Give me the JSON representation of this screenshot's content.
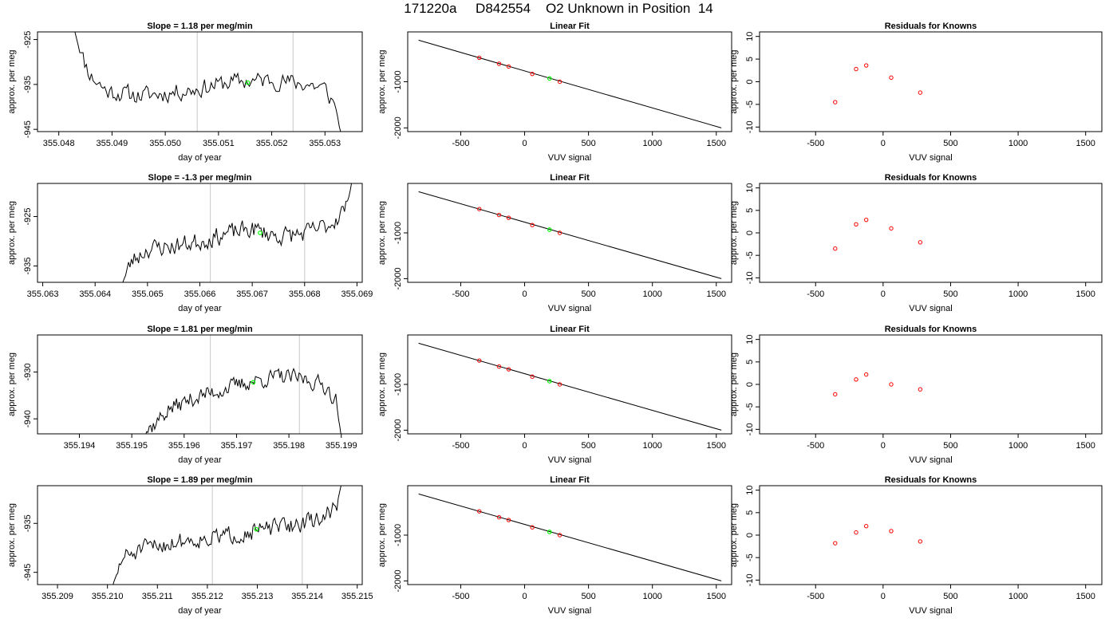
{
  "page_title": "171220a     D842554    O2 Unknown in Position  14",
  "colors": {
    "trace": "#000000",
    "knowns": "#ff0000",
    "unknown": "#00ff00",
    "guide_lines": "#c8c8c8",
    "fit_line": "#000000"
  },
  "chart_data": [
    {
      "type": "line",
      "title": "Slope =  1.18  per meg/min",
      "xlabel": "day of year",
      "ylabel": "approx. per meg",
      "xlim": [
        355.0476,
        355.0537
      ],
      "ylim": [
        -945.5,
        -923.3
      ],
      "xticks": [
        {
          "v": 355.048,
          "label": "355.048"
        },
        {
          "v": 355.049,
          "label": "355.049"
        },
        {
          "v": 355.05,
          "label": "355.050"
        },
        {
          "v": 355.051,
          "label": "355.051"
        },
        {
          "v": 355.052,
          "label": "355.052"
        },
        {
          "v": 355.053,
          "label": "355.053"
        }
      ],
      "yticks": [
        {
          "v": -945,
          "label": "-945"
        },
        {
          "v": -935,
          "label": "-935"
        },
        {
          "v": -925,
          "label": "-925"
        }
      ],
      "vlines": [
        355.0506,
        355.0524
      ],
      "trace": {
        "x0": 355.0483,
        "x1": 355.0533,
        "n": 160,
        "seed": 11,
        "noise": 1.8,
        "points": [
          [
            355.0483,
            -923.0
          ],
          [
            355.0484,
            -928
          ],
          [
            355.0486,
            -933
          ],
          [
            355.0489,
            -936.5
          ],
          [
            355.0495,
            -937.5
          ],
          [
            355.05,
            -937
          ],
          [
            355.0506,
            -936
          ],
          [
            355.0512,
            -934.5
          ],
          [
            355.052,
            -934
          ],
          [
            355.0527,
            -935
          ],
          [
            355.053,
            -936
          ],
          [
            355.0532,
            -940
          ],
          [
            355.0533,
            -946
          ]
        ]
      },
      "marker": {
        "x": 355.05155,
        "y": -934.6
      }
    },
    {
      "type": "line",
      "title": "Slope =  -1.3  per meg/min",
      "xlabel": "day of year",
      "ylabel": "approx. per meg",
      "xlim": [
        355.0629,
        355.0691
      ],
      "ylim": [
        -938.3,
        -918.3
      ],
      "xticks": [
        {
          "v": 355.063,
          "label": "355.063"
        },
        {
          "v": 355.064,
          "label": "355.064"
        },
        {
          "v": 355.065,
          "label": "355.065"
        },
        {
          "v": 355.066,
          "label": "355.066"
        },
        {
          "v": 355.067,
          "label": "355.067"
        },
        {
          "v": 355.068,
          "label": "355.068"
        },
        {
          "v": 355.069,
          "label": "355.069"
        }
      ],
      "yticks": [
        {
          "v": -935,
          "label": "-935"
        },
        {
          "v": -925,
          "label": "-925"
        }
      ],
      "vlines": [
        355.0662,
        355.068
      ],
      "trace": {
        "x0": 355.0645,
        "x1": 355.0689,
        "n": 160,
        "seed": 23,
        "noise": 1.7,
        "points": [
          [
            355.0645,
            -939
          ],
          [
            355.0647,
            -934
          ],
          [
            355.065,
            -931.5
          ],
          [
            355.0655,
            -931
          ],
          [
            355.066,
            -930
          ],
          [
            355.0665,
            -928.5
          ],
          [
            355.067,
            -927.5
          ],
          [
            355.0675,
            -929
          ],
          [
            355.068,
            -928.5
          ],
          [
            355.0685,
            -926.5
          ],
          [
            355.0688,
            -923
          ],
          [
            355.0689,
            -918
          ]
        ]
      },
      "marker": {
        "x": 355.06715,
        "y": -928.3
      }
    },
    {
      "type": "line",
      "title": "Slope =  1.81  per meg/min",
      "xlabel": "day of year",
      "ylabel": "approx. per meg",
      "xlim": [
        355.1932,
        355.1994
      ],
      "ylim": [
        -943.2,
        -922.1
      ],
      "xticks": [
        {
          "v": 355.194,
          "label": "355.194"
        },
        {
          "v": 355.195,
          "label": "355.195"
        },
        {
          "v": 355.196,
          "label": "355.196"
        },
        {
          "v": 355.197,
          "label": "355.197"
        },
        {
          "v": 355.198,
          "label": "355.198"
        },
        {
          "v": 355.199,
          "label": "355.199"
        }
      ],
      "yticks": [
        {
          "v": -940,
          "label": "-940"
        },
        {
          "v": -930,
          "label": "-930"
        }
      ],
      "vlines": [
        355.1965,
        355.1982
      ],
      "trace": {
        "x0": 355.1951,
        "x1": 355.199,
        "n": 150,
        "seed": 37,
        "noise": 1.6,
        "points": [
          [
            355.1951,
            -944
          ],
          [
            355.1954,
            -941.5
          ],
          [
            355.1957,
            -938
          ],
          [
            355.1962,
            -935.5
          ],
          [
            355.1968,
            -933.5
          ],
          [
            355.1973,
            -932
          ],
          [
            355.1978,
            -931
          ],
          [
            355.1983,
            -931.5
          ],
          [
            355.1987,
            -933
          ],
          [
            355.1989,
            -936
          ],
          [
            355.199,
            -944
          ]
        ]
      },
      "marker": {
        "x": 355.19732,
        "y": -932.2
      }
    },
    {
      "type": "line",
      "title": "Slope =  1.89  per meg/min",
      "xlabel": "day of year",
      "ylabel": "approx. per meg",
      "xlim": [
        355.2086,
        355.2151
      ],
      "ylim": [
        -947.5,
        -927.3
      ],
      "xticks": [
        {
          "v": 355.209,
          "label": "355.209"
        },
        {
          "v": 355.21,
          "label": "355.210"
        },
        {
          "v": 355.211,
          "label": "355.211"
        },
        {
          "v": 355.212,
          "label": "355.212"
        },
        {
          "v": 355.213,
          "label": "355.213"
        },
        {
          "v": 355.214,
          "label": "355.214"
        },
        {
          "v": 355.215,
          "label": "355.215"
        }
      ],
      "yticks": [
        {
          "v": -945,
          "label": "-945"
        },
        {
          "v": -935,
          "label": "-935"
        }
      ],
      "vlines": [
        355.2121,
        355.2139
      ],
      "trace": {
        "x0": 355.2101,
        "x1": 355.2147,
        "n": 170,
        "seed": 51,
        "noise": 1.6,
        "points": [
          [
            355.2101,
            -948
          ],
          [
            355.2103,
            -942
          ],
          [
            355.2108,
            -940
          ],
          [
            355.2115,
            -938.5
          ],
          [
            355.2121,
            -938
          ],
          [
            355.2127,
            -937
          ],
          [
            355.2133,
            -936
          ],
          [
            355.2139,
            -935
          ],
          [
            355.2143,
            -934
          ],
          [
            355.2146,
            -931
          ],
          [
            355.2147,
            -926
          ]
        ]
      },
      "marker": {
        "x": 355.21298,
        "y": -936.2
      }
    },
    {
      "type": "scatter",
      "title": "Linear Fit",
      "xlabel": "VUV signal",
      "ylabel": "approx. per meg",
      "xlim": [
        -915,
        1620
      ],
      "ylim": [
        -2080,
        80
      ],
      "xticks": [
        {
          "v": -500,
          "label": "-500"
        },
        {
          "v": 0,
          "label": "0"
        },
        {
          "v": 500,
          "label": "500"
        },
        {
          "v": 1000,
          "label": "1000"
        },
        {
          "v": 1500,
          "label": "1500"
        }
      ],
      "yticks": [
        {
          "v": -2000,
          "label": "-2000"
        },
        {
          "v": -1000,
          "label": "-1000"
        }
      ],
      "fit": [
        [
          -830,
          -100
        ],
        [
          1540,
          -2000
        ]
      ],
      "knowns": [
        [
          -355,
          -480
        ],
        [
          -200,
          -610
        ],
        [
          -125,
          -670
        ],
        [
          60,
          -830
        ],
        [
          275,
          -1000
        ]
      ],
      "unknown": [
        [
          195,
          -930
        ]
      ]
    },
    {
      "type": "scatter",
      "title": "Linear Fit",
      "xlabel": "VUV signal",
      "ylabel": "approx. per meg",
      "xlim": [
        -915,
        1620
      ],
      "ylim": [
        -2080,
        80
      ],
      "xticks": [
        {
          "v": -500,
          "label": "-500"
        },
        {
          "v": 0,
          "label": "0"
        },
        {
          "v": 500,
          "label": "500"
        },
        {
          "v": 1000,
          "label": "1000"
        },
        {
          "v": 1500,
          "label": "1500"
        }
      ],
      "yticks": [
        {
          "v": -2000,
          "label": "-2000"
        },
        {
          "v": -1000,
          "label": "-1000"
        }
      ],
      "fit": [
        [
          -830,
          -100
        ],
        [
          1540,
          -2000
        ]
      ],
      "knowns": [
        [
          -355,
          -480
        ],
        [
          -200,
          -610
        ],
        [
          -125,
          -670
        ],
        [
          60,
          -830
        ],
        [
          275,
          -1000
        ]
      ],
      "unknown": [
        [
          195,
          -930
        ]
      ]
    },
    {
      "type": "scatter",
      "title": "Linear Fit",
      "xlabel": "VUV signal",
      "ylabel": "approx. per meg",
      "xlim": [
        -915,
        1620
      ],
      "ylim": [
        -2080,
        80
      ],
      "xticks": [
        {
          "v": -500,
          "label": "-500"
        },
        {
          "v": 0,
          "label": "0"
        },
        {
          "v": 500,
          "label": "500"
        },
        {
          "v": 1000,
          "label": "1000"
        },
        {
          "v": 1500,
          "label": "1500"
        }
      ],
      "yticks": [
        {
          "v": -2000,
          "label": "-2000"
        },
        {
          "v": -1000,
          "label": "-1000"
        }
      ],
      "fit": [
        [
          -830,
          -100
        ],
        [
          1540,
          -2000
        ]
      ],
      "knowns": [
        [
          -355,
          -480
        ],
        [
          -200,
          -610
        ],
        [
          -125,
          -670
        ],
        [
          60,
          -830
        ],
        [
          275,
          -1000
        ]
      ],
      "unknown": [
        [
          195,
          -930
        ]
      ]
    },
    {
      "type": "scatter",
      "title": "Linear Fit",
      "xlabel": "VUV signal",
      "ylabel": "approx. per meg",
      "xlim": [
        -915,
        1620
      ],
      "ylim": [
        -2080,
        80
      ],
      "xticks": [
        {
          "v": -500,
          "label": "-500"
        },
        {
          "v": 0,
          "label": "0"
        },
        {
          "v": 500,
          "label": "500"
        },
        {
          "v": 1000,
          "label": "1000"
        },
        {
          "v": 1500,
          "label": "1500"
        }
      ],
      "yticks": [
        {
          "v": -2000,
          "label": "-2000"
        },
        {
          "v": -1000,
          "label": "-1000"
        }
      ],
      "fit": [
        [
          -830,
          -100
        ],
        [
          1540,
          -2000
        ]
      ],
      "knowns": [
        [
          -355,
          -480
        ],
        [
          -200,
          -610
        ],
        [
          -125,
          -670
        ],
        [
          60,
          -830
        ],
        [
          275,
          -1000
        ]
      ],
      "unknown": [
        [
          195,
          -930
        ]
      ]
    },
    {
      "type": "scatter",
      "title": "Residuals for Knowns",
      "xlabel": "VUV signal",
      "ylabel": "approx. per meg",
      "xlim": [
        -915,
        1620
      ],
      "ylim": [
        -11,
        11
      ],
      "xticks": [
        {
          "v": -500,
          "label": "-500"
        },
        {
          "v": 0,
          "label": "0"
        },
        {
          "v": 500,
          "label": "500"
        },
        {
          "v": 1000,
          "label": "1000"
        },
        {
          "v": 1500,
          "label": "1500"
        }
      ],
      "yticks": [
        {
          "v": -10,
          "label": "-10"
        },
        {
          "v": -5,
          "label": "-5"
        },
        {
          "v": 0,
          "label": "0"
        },
        {
          "v": 5,
          "label": "5"
        },
        {
          "v": 10,
          "label": "10"
        }
      ],
      "knowns": [
        [
          -355,
          -4.5
        ],
        [
          -200,
          2.8
        ],
        [
          -125,
          3.6
        ],
        [
          60,
          0.9
        ],
        [
          275,
          -2.4
        ]
      ]
    },
    {
      "type": "scatter",
      "title": "Residuals for Knowns",
      "xlabel": "VUV signal",
      "ylabel": "approx. per meg",
      "xlim": [
        -915,
        1620
      ],
      "ylim": [
        -11,
        11
      ],
      "xticks": [
        {
          "v": -500,
          "label": "-500"
        },
        {
          "v": 0,
          "label": "0"
        },
        {
          "v": 500,
          "label": "500"
        },
        {
          "v": 1000,
          "label": "1000"
        },
        {
          "v": 1500,
          "label": "1500"
        }
      ],
      "yticks": [
        {
          "v": -10,
          "label": "-10"
        },
        {
          "v": -5,
          "label": "-5"
        },
        {
          "v": 0,
          "label": "0"
        },
        {
          "v": 5,
          "label": "5"
        },
        {
          "v": 10,
          "label": "10"
        }
      ],
      "knowns": [
        [
          -355,
          -3.5
        ],
        [
          -200,
          1.9
        ],
        [
          -125,
          2.9
        ],
        [
          60,
          1.0
        ],
        [
          275,
          -2.1
        ]
      ]
    },
    {
      "type": "scatter",
      "title": "Residuals for Knowns",
      "xlabel": "VUV signal",
      "ylabel": "approx. per meg",
      "xlim": [
        -915,
        1620
      ],
      "ylim": [
        -11,
        11
      ],
      "xticks": [
        {
          "v": -500,
          "label": "-500"
        },
        {
          "v": 0,
          "label": "0"
        },
        {
          "v": 500,
          "label": "500"
        },
        {
          "v": 1000,
          "label": "1000"
        },
        {
          "v": 1500,
          "label": "1500"
        }
      ],
      "yticks": [
        {
          "v": -10,
          "label": "-10"
        },
        {
          "v": -5,
          "label": "-5"
        },
        {
          "v": 0,
          "label": "0"
        },
        {
          "v": 5,
          "label": "5"
        },
        {
          "v": 10,
          "label": "10"
        }
      ],
      "knowns": [
        [
          -355,
          -2.2
        ],
        [
          -200,
          1.1
        ],
        [
          -125,
          2.2
        ],
        [
          60,
          0.0
        ],
        [
          275,
          -1.1
        ]
      ]
    },
    {
      "type": "scatter",
      "title": "Residuals for Knowns",
      "xlabel": "VUV signal",
      "ylabel": "approx. per meg",
      "xlim": [
        -915,
        1620
      ],
      "ylim": [
        -11,
        11
      ],
      "xticks": [
        {
          "v": -500,
          "label": "-500"
        },
        {
          "v": 0,
          "label": "0"
        },
        {
          "v": 500,
          "label": "500"
        },
        {
          "v": 1000,
          "label": "1000"
        },
        {
          "v": 1500,
          "label": "1500"
        }
      ],
      "yticks": [
        {
          "v": -10,
          "label": "-10"
        },
        {
          "v": -5,
          "label": "-5"
        },
        {
          "v": 0,
          "label": "0"
        },
        {
          "v": 5,
          "label": "5"
        },
        {
          "v": 10,
          "label": "10"
        }
      ],
      "knowns": [
        [
          -355,
          -1.8
        ],
        [
          -200,
          0.6
        ],
        [
          -125,
          2.0
        ],
        [
          60,
          0.9
        ],
        [
          275,
          -1.4
        ]
      ]
    }
  ]
}
